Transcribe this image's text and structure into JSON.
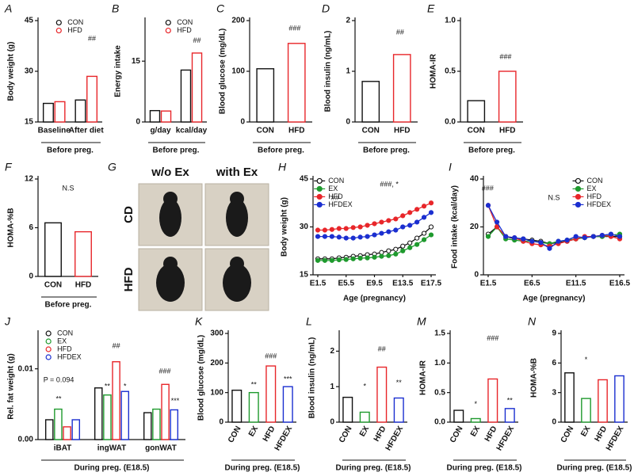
{
  "chart_data": [
    {
      "panel": "A",
      "type": "bar",
      "ylabel": "Body weight (g)",
      "xlabel": "Before preg.",
      "categories": [
        "Baseline",
        "After diet"
      ],
      "series": [
        {
          "name": "CON",
          "color": "#111111",
          "values": [
            20.5,
            21.5
          ]
        },
        {
          "name": "HFD",
          "color": "#e8262a",
          "values": [
            21,
            28.5
          ]
        }
      ],
      "ylim": [
        15,
        45
      ],
      "yticks": [
        15,
        30,
        45
      ],
      "annotations": [
        "##"
      ]
    },
    {
      "panel": "B",
      "type": "bar",
      "ylabel": "Energy intake",
      "xlabel": "Before preg.",
      "categories": [
        "g/day",
        "kcal/day"
      ],
      "series": [
        {
          "name": "CON",
          "color": "#111111",
          "values": [
            2.8,
            12.8
          ]
        },
        {
          "name": "HFD",
          "color": "#e8262a",
          "values": [
            2.7,
            17
          ]
        }
      ],
      "ylim": [
        0,
        25
      ],
      "yticks": [
        0,
        15
      ],
      "annotations": [
        "##"
      ]
    },
    {
      "panel": "C",
      "type": "bar",
      "ylabel": "Blood glucose (mg/dL)",
      "xlabel": "Before preg.",
      "categories": [
        "CON",
        "HFD"
      ],
      "values": [
        105,
        155
      ],
      "colors": [
        "#111111",
        "#e8262a"
      ],
      "ylim": [
        0,
        200
      ],
      "yticks": [
        0,
        100,
        200
      ],
      "annotations": [
        "###"
      ]
    },
    {
      "panel": "D",
      "type": "bar",
      "ylabel": "Blood insulin (ng/mL)",
      "xlabel": "Before preg.",
      "categories": [
        "CON",
        "HFD"
      ],
      "values": [
        0.8,
        1.33
      ],
      "colors": [
        "#111111",
        "#e8262a"
      ],
      "ylim": [
        0,
        2
      ],
      "yticks": [
        0,
        1,
        2
      ],
      "annotations": [
        "##"
      ]
    },
    {
      "panel": "E",
      "type": "bar",
      "ylabel": "HOMA-IR",
      "xlabel": "Before preg.",
      "categories": [
        "CON",
        "HFD"
      ],
      "values": [
        0.21,
        0.5
      ],
      "colors": [
        "#111111",
        "#e8262a"
      ],
      "ylim": [
        0,
        1
      ],
      "yticks": [
        {
          "value": 0,
          "label": "0.0"
        },
        0.5,
        {
          "value": 1,
          "label": "1.0"
        }
      ],
      "annotations": [
        "###"
      ]
    },
    {
      "panel": "F",
      "type": "bar",
      "ylabel": "HOMA-%B",
      "xlabel": "Before preg.",
      "categories": [
        "CON",
        "HFD"
      ],
      "values": [
        6.6,
        5.5
      ],
      "colors": [
        "#111111",
        "#e8262a"
      ],
      "ylim": [
        0,
        12
      ],
      "yticks": [
        0,
        6,
        12
      ],
      "annotations": [
        "N.S"
      ]
    },
    {
      "panel": "G",
      "type": "photo",
      "columns": [
        "w/o Ex",
        "with Ex"
      ],
      "rows": [
        "CD",
        "HFD"
      ]
    },
    {
      "panel": "H",
      "type": "line",
      "ylabel": "Body weight (g)",
      "xlabel": "Age (pregnancy)",
      "x": [
        1.5,
        2.5,
        3.5,
        4.5,
        5.5,
        6.5,
        7.5,
        8.5,
        9.5,
        10.5,
        11.5,
        12.5,
        13.5,
        14.5,
        15.5,
        16.5,
        17.5
      ],
      "series": [
        {
          "name": "CON",
          "color": "#111111",
          "values": [
            20,
            20,
            20,
            20.3,
            20.5,
            20.8,
            21,
            21.3,
            21.5,
            22,
            22.5,
            23,
            24,
            25,
            26.5,
            28,
            30
          ]
        },
        {
          "name": "EX",
          "color": "#1f9a2e",
          "values": [
            19.5,
            19.5,
            19.5,
            19.7,
            19.8,
            20,
            20.2,
            20.3,
            20.5,
            20.8,
            21,
            21.5,
            22.5,
            23.5,
            24.5,
            26,
            27.5
          ]
        },
        {
          "name": "HFD",
          "color": "#e8262a",
          "values": [
            29,
            29,
            29.2,
            29.5,
            29.5,
            29.8,
            30,
            30.5,
            31,
            31.5,
            32,
            32.5,
            33.5,
            34.5,
            35.5,
            36.5,
            37.5
          ]
        },
        {
          "name": "HFDEX",
          "color": "#1b2fd0",
          "values": [
            27,
            27,
            27,
            26.8,
            26.5,
            26.5,
            26.8,
            27,
            27.5,
            28,
            28.5,
            29,
            30,
            30.5,
            31.5,
            33,
            34.5
          ]
        }
      ],
      "xlim": [
        1.5,
        17.5
      ],
      "xticks": [
        {
          "value": 1.5,
          "label": "E1.5"
        },
        {
          "value": 5.5,
          "label": "E5.5"
        },
        {
          "value": 9.5,
          "label": "E9.5"
        },
        {
          "value": 13.5,
          "label": "E13.5"
        },
        {
          "value": 17.5,
          "label": "E17.5"
        }
      ],
      "ylim": [
        15,
        45
      ],
      "yticks": [
        15,
        30,
        45
      ],
      "annotations": [
        "##",
        "###, *",
        "*"
      ]
    },
    {
      "panel": "I",
      "type": "line",
      "ylabel": "Food intake (kcal/day)",
      "xlabel": "Age (pregnancy)",
      "x": [
        1.5,
        2.5,
        3.5,
        4.5,
        5.5,
        6.5,
        7.5,
        8.5,
        9.5,
        10.5,
        11.5,
        12.5,
        13.5,
        14.5,
        15.5,
        16.5
      ],
      "series": [
        {
          "name": "CON",
          "color": "#111111",
          "values": [
            17,
            20,
            16,
            15,
            15,
            14.5,
            14,
            13,
            13.5,
            14,
            15,
            15.5,
            16,
            16,
            16,
            16
          ]
        },
        {
          "name": "EX",
          "color": "#1f9a2e",
          "values": [
            16,
            20,
            15,
            14.5,
            14,
            14,
            13.5,
            13,
            14,
            14.5,
            15,
            15.5,
            16,
            16,
            16.5,
            17
          ]
        },
        {
          "name": "HFD",
          "color": "#e8262a",
          "values": [
            29,
            20,
            16,
            15.5,
            14,
            13,
            12.5,
            12,
            13,
            14,
            15,
            16,
            16,
            16.5,
            16,
            15
          ]
        },
        {
          "name": "HFDEX",
          "color": "#1b2fd0",
          "values": [
            29,
            22,
            16,
            15.5,
            15,
            14,
            13.5,
            11,
            14,
            14.5,
            16,
            15.5,
            16,
            16.5,
            17,
            16
          ]
        }
      ],
      "xlim": [
        1.5,
        16.5
      ],
      "xticks": [
        {
          "value": 1.5,
          "label": "E1.5"
        },
        {
          "value": 6.5,
          "label": "E6.5"
        },
        {
          "value": 11.5,
          "label": "E11.5"
        },
        {
          "value": 16.5,
          "label": "E16.5"
        }
      ],
      "ylim": [
        0,
        40
      ],
      "yticks": [
        0,
        20,
        40
      ],
      "annotations": [
        "###",
        "N.S"
      ]
    },
    {
      "panel": "J",
      "type": "bar",
      "ylabel": "Rel. fat weight (g)",
      "xlabel": "During preg. (E18.5)",
      "categories": [
        "iBAT",
        "ingWAT",
        "gonWAT"
      ],
      "series": [
        {
          "name": "CON",
          "color": "#111111",
          "values": [
            0.0028,
            0.0073,
            0.0038
          ]
        },
        {
          "name": "EX",
          "color": "#1f9a2e",
          "values": [
            0.0043,
            0.0063,
            0.0043
          ]
        },
        {
          "name": "HFD",
          "color": "#e8262a",
          "values": [
            0.0018,
            0.011,
            0.0078
          ]
        },
        {
          "name": "HFDEX",
          "color": "#1b2fd0",
          "values": [
            0.0028,
            0.0068,
            0.0042
          ]
        }
      ],
      "ylim": [
        0,
        0.015
      ],
      "yticks": [
        {
          "value": 0,
          "label": "0.00"
        },
        0.01
      ],
      "annotations": [
        "P = 0.094",
        "**",
        "**",
        "##",
        "*",
        "###",
        "***"
      ]
    },
    {
      "panel": "K",
      "type": "bar",
      "ylabel": "Blood glucose (mg/dL)",
      "xlabel": "During preg. (E18.5)",
      "categories": [
        "CON",
        "EX",
        "HFD",
        "HFDEX"
      ],
      "values": [
        108,
        100,
        190,
        120
      ],
      "colors": [
        "#111111",
        "#1f9a2e",
        "#e8262a",
        "#1b2fd0"
      ],
      "ylim": [
        0,
        300
      ],
      "yticks": [
        0,
        100,
        200,
        300
      ],
      "annotations": [
        "**",
        "###",
        "***"
      ]
    },
    {
      "panel": "L",
      "type": "bar",
      "ylabel": "Blood insulin (ng/mL)",
      "xlabel": "During preg. (E18.5)",
      "categories": [
        "CON",
        "EX",
        "HFD",
        "HFDEX"
      ],
      "values": [
        0.7,
        0.28,
        1.55,
        0.68
      ],
      "colors": [
        "#111111",
        "#1f9a2e",
        "#e8262a",
        "#1b2fd0"
      ],
      "ylim": [
        0,
        2.5
      ],
      "yticks": [
        0,
        1,
        2
      ],
      "annotations": [
        "*",
        "##",
        "**"
      ]
    },
    {
      "panel": "M",
      "type": "bar",
      "ylabel": "HOMA-IR",
      "xlabel": "During preg. (E18.5)",
      "categories": [
        "CON",
        "EX",
        "HFD",
        "HFDEX"
      ],
      "values": [
        0.2,
        0.06,
        0.73,
        0.23
      ],
      "colors": [
        "#111111",
        "#1f9a2e",
        "#e8262a",
        "#1b2fd0"
      ],
      "ylim": [
        0,
        1.5
      ],
      "yticks": [
        {
          "value": 0,
          "label": "0.0"
        },
        0.5,
        {
          "value": 1,
          "label": "1.0"
        },
        1.5
      ],
      "annotations": [
        "*",
        "###",
        "**"
      ]
    },
    {
      "panel": "N",
      "type": "bar",
      "ylabel": "HOMA-%B",
      "xlabel": "During preg. (E18.5)",
      "categories": [
        "CON",
        "EX",
        "HFD",
        "HFDEX"
      ],
      "values": [
        5,
        2.4,
        4.3,
        4.7
      ],
      "colors": [
        "#111111",
        "#1f9a2e",
        "#e8262a",
        "#1b2fd0"
      ],
      "ylim": [
        0,
        9
      ],
      "yticks": [
        0,
        3,
        6,
        9
      ],
      "annotations": [
        "*"
      ]
    }
  ]
}
